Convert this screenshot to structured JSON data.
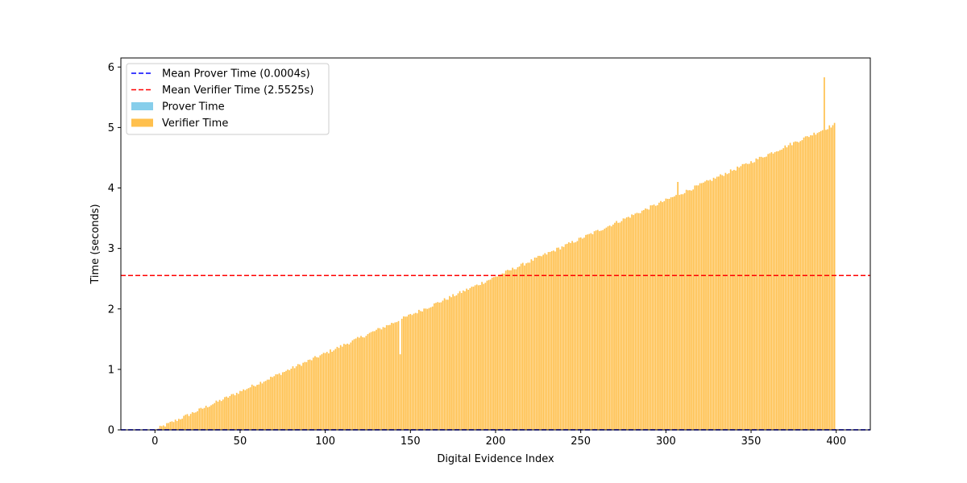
{
  "chart_data": {
    "type": "bar",
    "title": "",
    "xlabel": "Digital Evidence Index",
    "ylabel": "Time (seconds)",
    "xlim": [
      -20,
      420
    ],
    "ylim": [
      0,
      6.15
    ],
    "x_ticks": [
      0,
      50,
      100,
      150,
      200,
      250,
      300,
      350,
      400
    ],
    "y_ticks": [
      0,
      1,
      2,
      3,
      4,
      5,
      6
    ],
    "grid": false,
    "legend_position": "upper-left",
    "n_bars": 400,
    "series": [
      {
        "name": "Prover Time",
        "color": "#87ceeb",
        "approx_value": 0.0004
      },
      {
        "name": "Verifier Time",
        "color": "#ffc04d",
        "approx_start": 0.0,
        "approx_end": 5.05,
        "notable_points": [
          {
            "x": 144,
            "y": 1.25
          },
          {
            "x": 307,
            "y": 4.1
          },
          {
            "x": 393,
            "y": 5.83
          }
        ]
      }
    ],
    "reference_lines": [
      {
        "label": "Mean Prover Time (0.0004s)",
        "value": 0.0004,
        "color": "#0000ff",
        "style": "dashed"
      },
      {
        "label": "Mean Verifier Time (2.5525s)",
        "value": 2.5525,
        "color": "#ff0000",
        "style": "dashed"
      }
    ],
    "legend": [
      {
        "label": "Mean Prover Time (0.0004s)",
        "kind": "line",
        "color": "#0000ff"
      },
      {
        "label": "Mean Verifier Time (2.5525s)",
        "kind": "line",
        "color": "#ff0000"
      },
      {
        "label": "Prover Time",
        "kind": "patch",
        "color": "#87ceeb"
      },
      {
        "label": "Verifier Time",
        "kind": "patch",
        "color": "#ffc04d"
      }
    ]
  }
}
